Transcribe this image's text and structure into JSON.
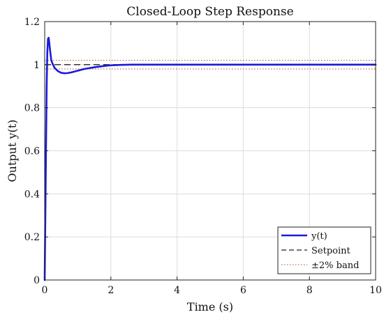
{
  "chart_data": {
    "type": "line",
    "title": "Closed-Loop Step Response",
    "xlabel": "Time (s)",
    "ylabel": "Output y(t)",
    "xlim": [
      0,
      10
    ],
    "ylim": [
      0,
      1.2
    ],
    "xticks": [
      0,
      2,
      4,
      6,
      8,
      10
    ],
    "yticks": [
      0,
      0.2,
      0.4,
      0.6,
      0.8,
      1,
      1.2
    ],
    "xtick_labels": [
      "0",
      "2",
      "4",
      "6",
      "8",
      "10"
    ],
    "ytick_labels": [
      "0",
      "0.2",
      "0.4",
      "0.6",
      "0.8",
      "1",
      "1.2"
    ],
    "grid": true,
    "legend_position": "bottom-right",
    "series": [
      {
        "name": "y(t)",
        "style": "solid",
        "color": "#1a1adb",
        "x": [
          0,
          0.02,
          0.04,
          0.06,
          0.08,
          0.1,
          0.12,
          0.14,
          0.16,
          0.2,
          0.25,
          0.3,
          0.4,
          0.5,
          0.6,
          0.7,
          0.8,
          1.0,
          1.2,
          1.5,
          1.8,
          2.0,
          2.3,
          2.6,
          3.0,
          4.0,
          6.0,
          8.0,
          10.0
        ],
        "y": [
          0,
          0.3,
          0.62,
          0.9,
          1.06,
          1.12,
          1.125,
          1.1,
          1.07,
          1.02,
          1.0,
          0.985,
          0.97,
          0.962,
          0.96,
          0.961,
          0.964,
          0.972,
          0.98,
          0.988,
          0.994,
          0.997,
          0.999,
          1.0,
          1.0,
          1.0,
          1.0,
          1.0,
          1.0
        ]
      },
      {
        "name": "Setpoint",
        "style": "dashed",
        "color": "#222222",
        "x": [
          0,
          10
        ],
        "y": [
          1,
          1
        ]
      },
      {
        "name": "±2% band",
        "style": "dotted",
        "color": "#a0522d",
        "bands": [
          0.98,
          1.02
        ],
        "x": [
          0,
          10
        ]
      }
    ]
  }
}
